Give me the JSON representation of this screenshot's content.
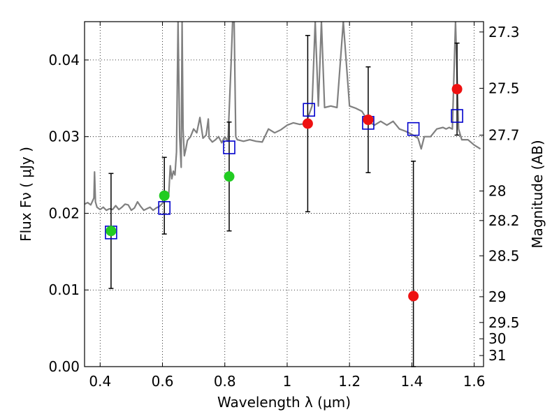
{
  "chart_data": {
    "type": "scatter",
    "xlabel": "Wavelength  λ (μm)",
    "ylabel": "Flux  Fν  ( μJy )",
    "ylabel_right": "Magnitude (AB)",
    "xlim": [
      0.35,
      1.63
    ],
    "ylim": [
      0.0,
      0.045
    ],
    "grid": true,
    "x_ticks": [
      {
        "value": 0.4,
        "label": "0.4"
      },
      {
        "value": 0.6,
        "label": "0.6"
      },
      {
        "value": 0.8,
        "label": "0.8"
      },
      {
        "value": 1.0,
        "label": "1"
      },
      {
        "value": 1.2,
        "label": "1.2"
      },
      {
        "value": 1.4,
        "label": "1.4"
      },
      {
        "value": 1.6,
        "label": "1.6"
      }
    ],
    "y_ticks": [
      {
        "value": 0.0,
        "label": "0.00"
      },
      {
        "value": 0.01,
        "label": "0.01"
      },
      {
        "value": 0.02,
        "label": "0.02"
      },
      {
        "value": 0.03,
        "label": "0.03"
      },
      {
        "value": 0.04,
        "label": "0.04"
      }
    ],
    "mag_ticks": [
      {
        "mag": 27.3,
        "label": "27.3"
      },
      {
        "mag": 27.5,
        "label": "27.5"
      },
      {
        "mag": 27.7,
        "label": "27.7"
      },
      {
        "mag": 28,
        "label": "28"
      },
      {
        "mag": 28.2,
        "label": "28.2"
      },
      {
        "mag": 28.5,
        "label": "28.5"
      },
      {
        "mag": 29,
        "label": "29"
      },
      {
        "mag": 29.5,
        "label": "29.5"
      },
      {
        "mag": 30,
        "label": "30"
      },
      {
        "mag": 31,
        "label": "31"
      }
    ],
    "series": [
      {
        "kind": "spectrum",
        "color": "#808080",
        "x": [
          0.35,
          0.36,
          0.37,
          0.38,
          0.382,
          0.385,
          0.39,
          0.4,
          0.41,
          0.42,
          0.43,
          0.44,
          0.45,
          0.46,
          0.47,
          0.48,
          0.49,
          0.5,
          0.51,
          0.52,
          0.53,
          0.54,
          0.55,
          0.56,
          0.57,
          0.58,
          0.59,
          0.6,
          0.61,
          0.62,
          0.625,
          0.63,
          0.635,
          0.64,
          0.645,
          0.65,
          0.655,
          0.66,
          0.663,
          0.666,
          0.67,
          0.675,
          0.68,
          0.69,
          0.7,
          0.71,
          0.72,
          0.73,
          0.74,
          0.747,
          0.75,
          0.76,
          0.77,
          0.78,
          0.79,
          0.8,
          0.81,
          0.82,
          0.825,
          0.83,
          0.835,
          0.84,
          0.86,
          0.88,
          0.9,
          0.92,
          0.94,
          0.96,
          0.98,
          1.0,
          1.02,
          1.04,
          1.06,
          1.08,
          1.09,
          1.1,
          1.11,
          1.12,
          1.14,
          1.16,
          1.18,
          1.2,
          1.22,
          1.24,
          1.26,
          1.28,
          1.3,
          1.32,
          1.34,
          1.36,
          1.38,
          1.4,
          1.42,
          1.43,
          1.44,
          1.46,
          1.48,
          1.5,
          1.51,
          1.52,
          1.53,
          1.54,
          1.55,
          1.56,
          1.58,
          1.6,
          1.62
        ],
        "y": [
          0.0212,
          0.0214,
          0.0211,
          0.022,
          0.0254,
          0.0215,
          0.0208,
          0.0205,
          0.0208,
          0.0204,
          0.0206,
          0.0205,
          0.021,
          0.0205,
          0.0208,
          0.0212,
          0.0211,
          0.0204,
          0.0207,
          0.0215,
          0.0209,
          0.0204,
          0.0206,
          0.0208,
          0.0204,
          0.0207,
          0.0209,
          0.0213,
          0.0218,
          0.0223,
          0.0262,
          0.0245,
          0.0255,
          0.025,
          0.028,
          0.045,
          0.03,
          0.026,
          0.045,
          0.031,
          0.0275,
          0.0284,
          0.0295,
          0.03,
          0.031,
          0.0305,
          0.0325,
          0.0298,
          0.0302,
          0.0323,
          0.0298,
          0.0293,
          0.0296,
          0.03,
          0.0292,
          0.03,
          0.0294,
          0.0395,
          0.045,
          0.045,
          0.03,
          0.0296,
          0.0294,
          0.0296,
          0.0294,
          0.0293,
          0.031,
          0.0305,
          0.0309,
          0.0315,
          0.0318,
          0.0316,
          0.0317,
          0.034,
          0.045,
          0.034,
          0.045,
          0.0338,
          0.034,
          0.0338,
          0.045,
          0.034,
          0.0337,
          0.0333,
          0.032,
          0.0315,
          0.032,
          0.0315,
          0.032,
          0.031,
          0.0307,
          0.0303,
          0.0298,
          0.0284,
          0.03,
          0.03,
          0.031,
          0.0312,
          0.031,
          0.0312,
          0.031,
          0.045,
          0.031,
          0.0296,
          0.0296,
          0.0289,
          0.0284
        ]
      },
      {
        "kind": "model-photometry",
        "marker": "open-square",
        "color": "#0000cc",
        "x": [
          0.435,
          0.606,
          0.814,
          1.07,
          1.26,
          1.405,
          1.545
        ],
        "y": [
          0.0175,
          0.0207,
          0.0286,
          0.0335,
          0.0318,
          0.031,
          0.0327
        ]
      },
      {
        "kind": "observed-flux",
        "marker": "filled-circle",
        "color": "#22cc22",
        "x": [
          0.435,
          0.606,
          0.814
        ],
        "y": [
          0.0177,
          0.0223,
          0.0248
        ],
        "yerr": [
          0.0075,
          0.005,
          0.0071
        ]
      },
      {
        "kind": "observed-flux",
        "marker": "filled-circle",
        "color": "#ee1111",
        "x": [
          1.066,
          1.26,
          1.405,
          1.545
        ],
        "y": [
          0.0317,
          0.0322,
          0.0092,
          0.0362
        ],
        "yerr": [
          0.0115,
          0.0069,
          0.0176,
          0.006
        ]
      }
    ]
  }
}
